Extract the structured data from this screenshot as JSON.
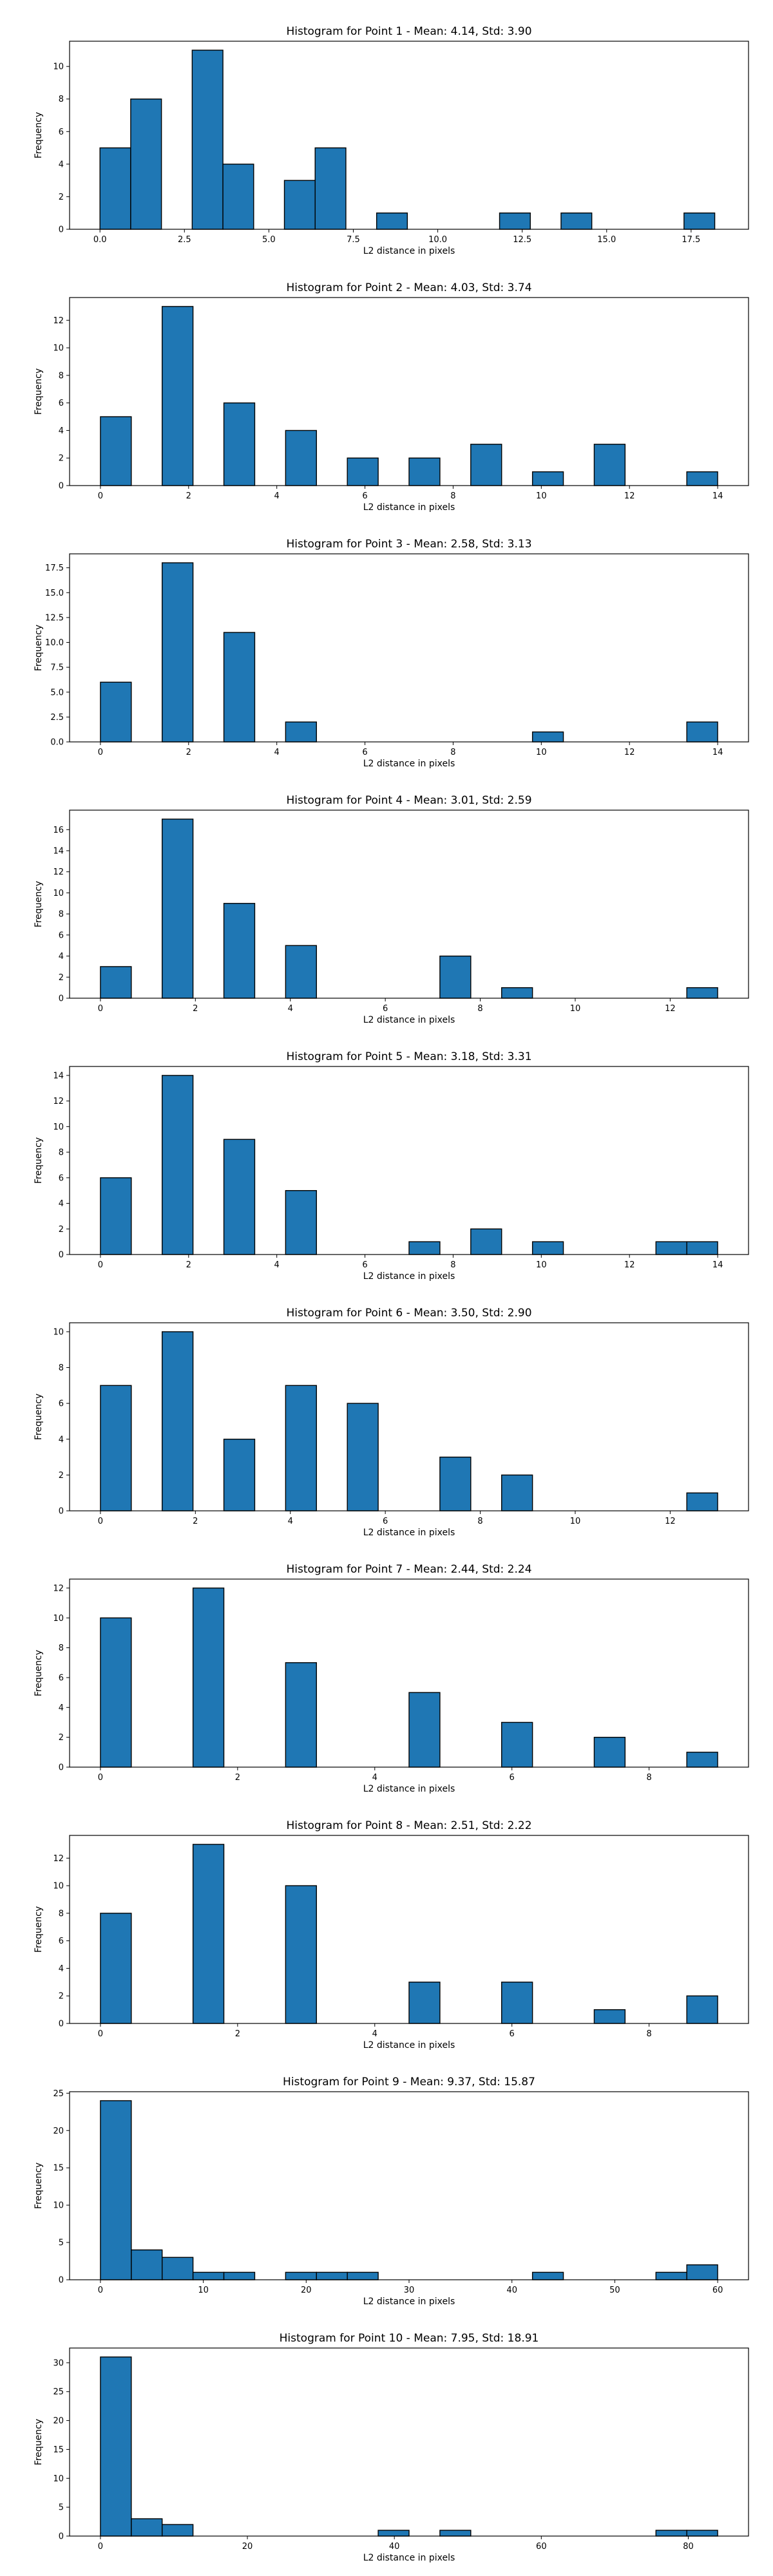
{
  "chart_data": [
    {
      "type": "bar",
      "title": "Histogram for Point 1 - Mean: 4.14, Std: 3.90",
      "xlabel": "L2 distance in pixels",
      "ylabel": "Frequency",
      "xlim": [
        -0.9,
        19.2
      ],
      "ylim": [
        0,
        11.55
      ],
      "xticks": [
        0,
        2.5,
        5,
        7.5,
        10,
        12.5,
        15,
        17.5
      ],
      "xtick_labels": [
        "0.0",
        "2.5",
        "5.0",
        "7.5",
        "10.0",
        "12.5",
        "15.0",
        "17.5"
      ],
      "yticks": [
        0,
        2,
        4,
        6,
        8,
        10
      ],
      "bin_edges": [
        0,
        0.91,
        1.82,
        2.73,
        3.64,
        4.55,
        5.46,
        6.37,
        7.28,
        8.19,
        9.1,
        10.01,
        10.92,
        11.83,
        12.74,
        13.65,
        14.56,
        15.47,
        16.38,
        17.29,
        18.2
      ],
      "values": [
        5,
        8,
        0,
        11,
        4,
        0,
        3,
        5,
        0,
        1,
        0,
        0,
        0,
        1,
        0,
        1,
        0,
        0,
        0,
        1
      ]
    },
    {
      "type": "bar",
      "title": "Histogram for Point 2 - Mean: 4.03, Std: 3.74",
      "xlabel": "L2 distance in pixels",
      "ylabel": "Frequency",
      "xlim": [
        -0.7,
        14.7
      ],
      "ylim": [
        0,
        13.65
      ],
      "xticks": [
        0,
        2,
        4,
        6,
        8,
        10,
        12,
        14
      ],
      "xtick_labels": [
        "0",
        "2",
        "4",
        "6",
        "8",
        "10",
        "12",
        "14"
      ],
      "yticks": [
        0,
        2,
        4,
        6,
        8,
        10,
        12
      ],
      "bin_edges": [
        0,
        0.7,
        1.4,
        2.1,
        2.8,
        3.5,
        4.2,
        4.9,
        5.6,
        6.3,
        7,
        7.7,
        8.4,
        9.1,
        9.8,
        10.5,
        11.2,
        11.9,
        12.6,
        13.3,
        14
      ],
      "values": [
        5,
        0,
        13,
        0,
        6,
        0,
        4,
        0,
        2,
        0,
        2,
        0,
        3,
        0,
        1,
        0,
        3,
        0,
        0,
        1
      ]
    },
    {
      "type": "bar",
      "title": "Histogram for Point 3 - Mean: 2.58, Std: 3.13",
      "xlabel": "L2 distance in pixels",
      "ylabel": "Frequency",
      "xlim": [
        -0.7,
        14.7
      ],
      "ylim": [
        0,
        18.9
      ],
      "xticks": [
        0,
        2,
        4,
        6,
        8,
        10,
        12,
        14
      ],
      "xtick_labels": [
        "0",
        "2",
        "4",
        "6",
        "8",
        "10",
        "12",
        "14"
      ],
      "yticks": [
        0,
        2.5,
        5,
        7.5,
        10,
        12.5,
        15,
        17.5
      ],
      "ytick_labels": [
        "0.0",
        "2.5",
        "5.0",
        "7.5",
        "10.0",
        "12.5",
        "15.0",
        "17.5"
      ],
      "bin_edges": [
        0,
        0.7,
        1.4,
        2.1,
        2.8,
        3.5,
        4.2,
        4.9,
        5.6,
        6.3,
        7,
        7.7,
        8.4,
        9.1,
        9.8,
        10.5,
        11.2,
        11.9,
        12.6,
        13.3,
        14
      ],
      "values": [
        6,
        0,
        18,
        0,
        11,
        0,
        2,
        0,
        0,
        0,
        0,
        0,
        0,
        0,
        1,
        0,
        0,
        0,
        0,
        2
      ]
    },
    {
      "type": "bar",
      "title": "Histogram for Point 4 - Mean: 3.01, Std: 2.59",
      "xlabel": "L2 distance in pixels",
      "ylabel": "Frequency",
      "xlim": [
        -0.65,
        13.65
      ],
      "ylim": [
        0,
        17.85
      ],
      "xticks": [
        0,
        2,
        4,
        6,
        8,
        10,
        12
      ],
      "xtick_labels": [
        "0",
        "2",
        "4",
        "6",
        "8",
        "10",
        "12"
      ],
      "yticks": [
        0,
        2,
        4,
        6,
        8,
        10,
        12,
        14,
        16
      ],
      "bin_edges": [
        0,
        0.65,
        1.3,
        1.95,
        2.6,
        3.25,
        3.9,
        4.55,
        5.2,
        5.85,
        6.5,
        7.15,
        7.8,
        8.45,
        9.1,
        9.75,
        10.4,
        11.05,
        11.7,
        12.35,
        13
      ],
      "values": [
        3,
        0,
        17,
        0,
        9,
        0,
        5,
        0,
        0,
        0,
        0,
        4,
        0,
        1,
        0,
        0,
        0,
        0,
        0,
        1
      ]
    },
    {
      "type": "bar",
      "title": "Histogram for Point 5 - Mean: 3.18, Std: 3.31",
      "xlabel": "L2 distance in pixels",
      "ylabel": "Frequency",
      "xlim": [
        -0.7,
        14.7
      ],
      "ylim": [
        0,
        14.7
      ],
      "xticks": [
        0,
        2,
        4,
        6,
        8,
        10,
        12,
        14
      ],
      "xtick_labels": [
        "0",
        "2",
        "4",
        "6",
        "8",
        "10",
        "12",
        "14"
      ],
      "yticks": [
        0,
        2,
        4,
        6,
        8,
        10,
        12,
        14
      ],
      "bin_edges": [
        0,
        0.7,
        1.4,
        2.1,
        2.8,
        3.5,
        4.2,
        4.9,
        5.6,
        6.3,
        7,
        7.7,
        8.4,
        9.1,
        9.8,
        10.5,
        11.2,
        11.9,
        12.6,
        13.3,
        14
      ],
      "values": [
        6,
        0,
        14,
        0,
        9,
        0,
        5,
        0,
        0,
        0,
        1,
        0,
        2,
        0,
        1,
        0,
        0,
        0,
        1,
        1
      ]
    },
    {
      "type": "bar",
      "title": "Histogram for Point 6 - Mean: 3.50, Std: 2.90",
      "xlabel": "L2 distance in pixels",
      "ylabel": "Frequency",
      "xlim": [
        -0.65,
        13.65
      ],
      "ylim": [
        0,
        10.5
      ],
      "xticks": [
        0,
        2,
        4,
        6,
        8,
        10,
        12
      ],
      "xtick_labels": [
        "0",
        "2",
        "4",
        "6",
        "8",
        "10",
        "12"
      ],
      "yticks": [
        0,
        2,
        4,
        6,
        8,
        10
      ],
      "bin_edges": [
        0,
        0.65,
        1.3,
        1.95,
        2.6,
        3.25,
        3.9,
        4.55,
        5.2,
        5.85,
        6.5,
        7.15,
        7.8,
        8.45,
        9.1,
        9.75,
        10.4,
        11.05,
        11.7,
        12.35,
        13
      ],
      "values": [
        7,
        0,
        10,
        0,
        4,
        0,
        7,
        0,
        6,
        0,
        0,
        3,
        0,
        2,
        0,
        0,
        0,
        0,
        0,
        1
      ]
    },
    {
      "type": "bar",
      "title": "Histogram for Point 7 - Mean: 2.44, Std: 2.24",
      "xlabel": "L2 distance in pixels",
      "ylabel": "Frequency",
      "xlim": [
        -0.45,
        9.45
      ],
      "ylim": [
        0,
        12.6
      ],
      "xticks": [
        0,
        2,
        4,
        6,
        8
      ],
      "xtick_labels": [
        "0",
        "2",
        "4",
        "6",
        "8"
      ],
      "yticks": [
        0,
        2,
        4,
        6,
        8,
        10,
        12
      ],
      "bin_edges": [
        0,
        0.45,
        0.9,
        1.35,
        1.8,
        2.25,
        2.7,
        3.15,
        3.6,
        4.05,
        4.5,
        4.95,
        5.4,
        5.85,
        6.3,
        6.75,
        7.2,
        7.65,
        8.1,
        8.55,
        9
      ],
      "values": [
        10,
        0,
        0,
        12,
        0,
        0,
        7,
        0,
        0,
        0,
        5,
        0,
        0,
        3,
        0,
        0,
        2,
        0,
        0,
        1
      ]
    },
    {
      "type": "bar",
      "title": "Histogram for Point 8 - Mean: 2.51, Std: 2.22",
      "xlabel": "L2 distance in pixels",
      "ylabel": "Frequency",
      "xlim": [
        -0.45,
        9.45
      ],
      "ylim": [
        0,
        13.65
      ],
      "xticks": [
        0,
        2,
        4,
        6,
        8
      ],
      "xtick_labels": [
        "0",
        "2",
        "4",
        "6",
        "8"
      ],
      "yticks": [
        0,
        2,
        4,
        6,
        8,
        10,
        12
      ],
      "bin_edges": [
        0,
        0.45,
        0.9,
        1.35,
        1.8,
        2.25,
        2.7,
        3.15,
        3.6,
        4.05,
        4.5,
        4.95,
        5.4,
        5.85,
        6.3,
        6.75,
        7.2,
        7.65,
        8.1,
        8.55,
        9
      ],
      "values": [
        8,
        0,
        0,
        13,
        0,
        0,
        10,
        0,
        0,
        0,
        3,
        0,
        0,
        3,
        0,
        0,
        1,
        0,
        0,
        2
      ]
    },
    {
      "type": "bar",
      "title": "Histogram for Point 9 - Mean: 9.37, Std: 15.87",
      "xlabel": "L2 distance in pixels",
      "ylabel": "Frequency",
      "xlim": [
        -3,
        63
      ],
      "ylim": [
        0,
        25.2
      ],
      "xticks": [
        0,
        10,
        20,
        30,
        40,
        50,
        60
      ],
      "xtick_labels": [
        "0",
        "10",
        "20",
        "30",
        "40",
        "50",
        "60"
      ],
      "yticks": [
        0,
        5,
        10,
        15,
        20,
        25
      ],
      "bin_edges": [
        0,
        3,
        6,
        9,
        12,
        15,
        18,
        21,
        24,
        27,
        30,
        33,
        36,
        39,
        42,
        45,
        48,
        51,
        54,
        57,
        60
      ],
      "values": [
        24,
        4,
        3,
        1,
        1,
        0,
        1,
        1,
        1,
        0,
        0,
        0,
        0,
        0,
        1,
        0,
        0,
        0,
        1,
        2
      ]
    },
    {
      "type": "bar",
      "title": "Histogram for Point 10 - Mean: 7.95, Std: 18.91",
      "xlabel": "L2 distance in pixels",
      "ylabel": "Frequency",
      "xlim": [
        -4.2,
        88.2
      ],
      "ylim": [
        0,
        32.55
      ],
      "xticks": [
        0,
        20,
        40,
        60,
        80
      ],
      "xtick_labels": [
        "0",
        "20",
        "40",
        "60",
        "80"
      ],
      "yticks": [
        0,
        5,
        10,
        15,
        20,
        25,
        30
      ],
      "bin_edges": [
        0,
        4.2,
        8.4,
        12.6,
        16.8,
        21,
        25.2,
        29.4,
        33.6,
        37.8,
        42,
        46.2,
        50.4,
        54.6,
        58.8,
        63,
        67.2,
        71.4,
        75.6,
        79.8,
        84
      ],
      "values": [
        31,
        3,
        2,
        0,
        0,
        0,
        0,
        0,
        0,
        1,
        0,
        1,
        0,
        0,
        0,
        0,
        0,
        0,
        1,
        1
      ]
    }
  ],
  "colors": {
    "bar_fill": "#1f77b4",
    "bar_edge": "#000000",
    "axis": "#000000"
  }
}
